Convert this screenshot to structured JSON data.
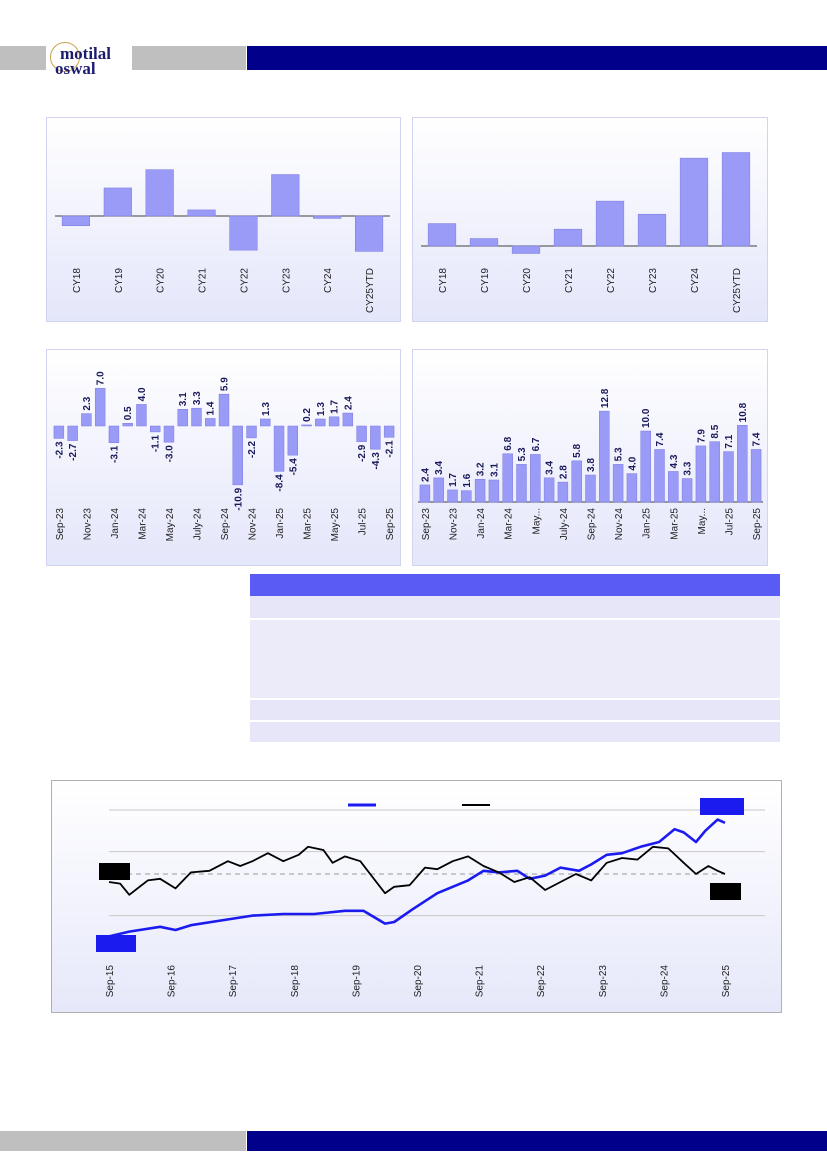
{
  "brand": {
    "line1": "motilal",
    "line2": "oswal"
  },
  "colors": {
    "bar": "#9a9af7",
    "bar_edge": "#7a7ae0",
    "line_blue": "#1b1bf0",
    "line_black": "#000000",
    "header_navy": "#00008b",
    "header_grey": "#bfbfbf",
    "table_head": "#5a5af5"
  },
  "chart_data": [
    {
      "type": "bar",
      "categories": [
        "CY18",
        "CY19",
        "CY20",
        "CY21",
        "CY22",
        "CY23",
        "CY24",
        "CY25YTD"
      ],
      "values": [
        -8,
        23,
        38,
        5,
        -28,
        34,
        -2,
        -29
      ]
    },
    {
      "type": "bar",
      "categories": [
        "CY18",
        "CY19",
        "CY20",
        "CY21",
        "CY22",
        "CY23",
        "CY24",
        "CY25YTD"
      ],
      "values": [
        12,
        4,
        -4,
        9,
        24,
        17,
        47,
        50
      ]
    },
    {
      "type": "bar",
      "categories": [
        "Sep-23",
        "Oct-23",
        "Nov-23",
        "Dec-23",
        "Jan-24",
        "Feb-24",
        "Mar-24",
        "Apr-24",
        "May-24",
        "Jun-24",
        "July-24",
        "Aug-24",
        "Sep-24",
        "Oct-24",
        "Nov-24",
        "Dec-24",
        "Jan-25",
        "Feb-25",
        "Mar-25",
        "Apr-25",
        "May-25",
        "Jun-25",
        "Jul-25",
        "Aug-25",
        "Sep-25"
      ],
      "tick_labels": [
        "Sep-23",
        "Nov-23",
        "Jan-24",
        "Mar-24",
        "May-24",
        "July-24",
        "Sep-24",
        "Nov-24",
        "Jan-25",
        "Mar-25",
        "May-25",
        "Jul-25",
        "Sep-25"
      ],
      "values": [
        -2.3,
        -2.7,
        2.3,
        7.0,
        -3.1,
        0.5,
        4.0,
        -1.1,
        -3.0,
        3.1,
        3.3,
        1.4,
        5.9,
        -10.9,
        -2.2,
        1.3,
        -8.4,
        -5.4,
        0.2,
        1.3,
        1.7,
        2.4,
        -2.9,
        -4.3,
        -2.1
      ],
      "labels": [
        "-2.3",
        "-2.7",
        "2.3",
        "7.0",
        "-3.1",
        "0.5",
        "4.0",
        "-1.1",
        "-3.0",
        "3.1",
        "3.3",
        "1.4",
        "5.9",
        "-10.9",
        "-2.2",
        "1.3",
        "-8.4",
        "-5.4",
        "0.2",
        "1.3",
        "1.7",
        "2.4",
        "-2.9",
        "-4.3",
        "-2.1"
      ]
    },
    {
      "type": "bar",
      "categories": [
        "Sep-23",
        "Oct-23",
        "Nov-23",
        "Dec-23",
        "Jan-24",
        "Feb-24",
        "Mar-24",
        "Apr-24",
        "May-24",
        "Jun-24",
        "July-24",
        "Aug-24",
        "Sep-24",
        "Oct-24",
        "Nov-24",
        "Dec-24",
        "Jan-25",
        "Feb-25",
        "Mar-25",
        "Apr-25",
        "May-25",
        "Jun-25",
        "Jul-25",
        "Aug-25",
        "Sep-25"
      ],
      "tick_labels": [
        "Sep-23",
        "Nov-23",
        "Jan-24",
        "Mar-24",
        "May...",
        "July-24",
        "Sep-24",
        "Nov-24",
        "Jan-25",
        "Mar-25",
        "May...",
        "Jul-25",
        "Sep-25"
      ],
      "values": [
        2.4,
        3.4,
        1.7,
        1.6,
        3.2,
        3.1,
        6.8,
        5.3,
        6.7,
        3.4,
        2.8,
        5.8,
        3.8,
        12.8,
        5.3,
        4.0,
        10.0,
        7.4,
        4.3,
        3.3,
        7.9,
        8.5,
        7.1,
        10.8,
        7.4
      ],
      "labels": [
        "2.4",
        "3.4",
        "1.7",
        "1.6",
        "3.2",
        "3.1",
        "6.8",
        "5.3",
        "6.7",
        "3.4",
        "2.8",
        "5.8",
        "3.8",
        "12.8",
        "5.3",
        "4.0",
        "10.0",
        "7.4",
        "4.3",
        "3.3",
        "7.9",
        "8.5",
        "7.1",
        "10.8",
        "7.4"
      ]
    },
    {
      "type": "line",
      "x_tick_labels": [
        "Sep-15",
        "Sep-16",
        "Sep-17",
        "Sep-18",
        "Sep-19",
        "Sep-20",
        "Sep-21",
        "Sep-22",
        "Sep-23",
        "Sep-24",
        "Sep-25"
      ],
      "x_range": [
        2015.67,
        2025.67
      ],
      "y_range": [
        0,
        5
      ],
      "grid": true,
      "reference_line": 2.5,
      "series": [
        {
          "color": "#1b1bf0",
          "values": [
            [
              2015.67,
              0.55
            ],
            [
              2016.0,
              0.7
            ],
            [
              2016.5,
              0.85
            ],
            [
              2016.75,
              0.75
            ],
            [
              2017.0,
              0.9
            ],
            [
              2017.5,
              1.05
            ],
            [
              2018.0,
              1.2
            ],
            [
              2018.5,
              1.25
            ],
            [
              2019.0,
              1.25
            ],
            [
              2019.5,
              1.35
            ],
            [
              2019.8,
              1.35
            ],
            [
              2020.15,
              0.95
            ],
            [
              2020.3,
              1.0
            ],
            [
              2020.6,
              1.4
            ],
            [
              2021.0,
              1.9
            ],
            [
              2021.5,
              2.3
            ],
            [
              2021.75,
              2.6
            ],
            [
              2022.0,
              2.55
            ],
            [
              2022.3,
              2.6
            ],
            [
              2022.5,
              2.35
            ],
            [
              2022.75,
              2.45
            ],
            [
              2023.0,
              2.7
            ],
            [
              2023.3,
              2.6
            ],
            [
              2023.5,
              2.8
            ],
            [
              2023.75,
              3.1
            ],
            [
              2024.0,
              3.15
            ],
            [
              2024.3,
              3.35
            ],
            [
              2024.6,
              3.5
            ],
            [
              2024.85,
              3.9
            ],
            [
              2025.0,
              3.8
            ],
            [
              2025.2,
              3.5
            ],
            [
              2025.35,
              3.85
            ],
            [
              2025.55,
              4.2
            ],
            [
              2025.67,
              4.1
            ]
          ]
        },
        {
          "color": "#000000",
          "values": [
            [
              2015.67,
              2.25
            ],
            [
              2015.85,
              2.2
            ],
            [
              2016.0,
              1.85
            ],
            [
              2016.3,
              2.3
            ],
            [
              2016.5,
              2.35
            ],
            [
              2016.75,
              2.05
            ],
            [
              2017.0,
              2.55
            ],
            [
              2017.3,
              2.6
            ],
            [
              2017.6,
              2.9
            ],
            [
              2017.8,
              2.75
            ],
            [
              2018.0,
              2.9
            ],
            [
              2018.25,
              3.15
            ],
            [
              2018.5,
              2.9
            ],
            [
              2018.75,
              3.1
            ],
            [
              2018.9,
              3.35
            ],
            [
              2019.15,
              3.25
            ],
            [
              2019.3,
              2.85
            ],
            [
              2019.5,
              3.05
            ],
            [
              2019.75,
              2.9
            ],
            [
              2020.15,
              1.9
            ],
            [
              2020.3,
              2.1
            ],
            [
              2020.55,
              2.15
            ],
            [
              2020.8,
              2.7
            ],
            [
              2021.0,
              2.65
            ],
            [
              2021.25,
              2.9
            ],
            [
              2021.5,
              3.05
            ],
            [
              2021.75,
              2.75
            ],
            [
              2022.0,
              2.55
            ],
            [
              2022.25,
              2.25
            ],
            [
              2022.5,
              2.4
            ],
            [
              2022.75,
              2.0
            ],
            [
              2023.0,
              2.25
            ],
            [
              2023.25,
              2.5
            ],
            [
              2023.5,
              2.3
            ],
            [
              2023.75,
              2.85
            ],
            [
              2024.0,
              3.0
            ],
            [
              2024.25,
              2.95
            ],
            [
              2024.5,
              3.35
            ],
            [
              2024.75,
              3.3
            ],
            [
              2025.0,
              2.85
            ],
            [
              2025.2,
              2.5
            ],
            [
              2025.4,
              2.75
            ],
            [
              2025.55,
              2.6
            ],
            [
              2025.67,
              2.5
            ]
          ]
        }
      ]
    }
  ]
}
